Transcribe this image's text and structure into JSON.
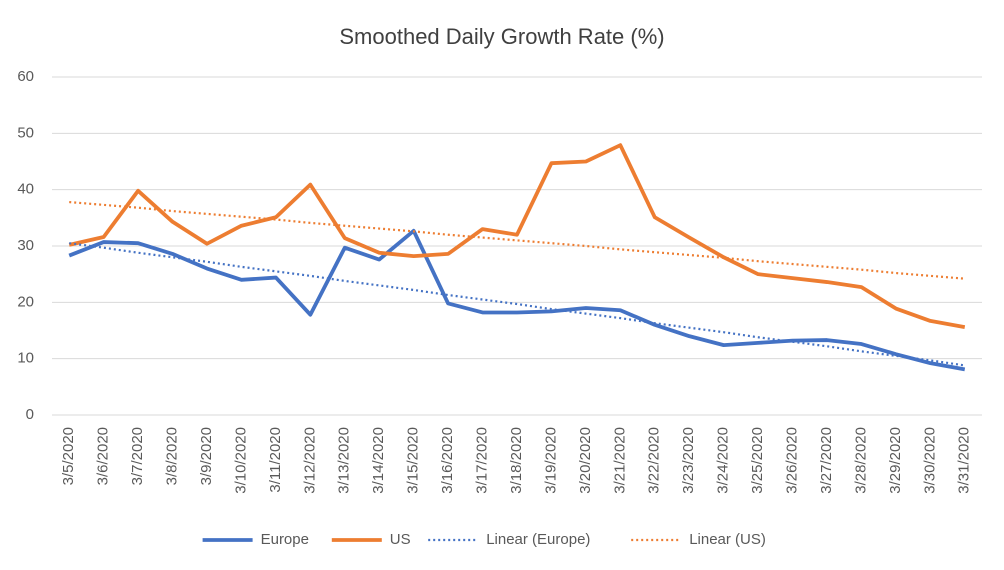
{
  "chart_data": {
    "type": "line",
    "title": "Smoothed Daily Growth Rate (%)",
    "categories": [
      "3/5/2020",
      "3/6/2020",
      "3/7/2020",
      "3/8/2020",
      "3/9/2020",
      "3/10/2020",
      "3/11/2020",
      "3/12/2020",
      "3/13/2020",
      "3/14/2020",
      "3/15/2020",
      "3/16/2020",
      "3/17/2020",
      "3/18/2020",
      "3/19/2020",
      "3/20/2020",
      "3/21/2020",
      "3/22/2020",
      "3/23/2020",
      "3/24/2020",
      "3/25/2020",
      "3/26/2020",
      "3/27/2020",
      "3/28/2020",
      "3/29/2020",
      "3/30/2020",
      "3/31/2020"
    ],
    "series": [
      {
        "name": "Europe",
        "color": "#4472c4",
        "style": "solid",
        "values": [
          28.3,
          30.7,
          30.5,
          28.6,
          26,
          24,
          24.4,
          17.8,
          29.7,
          27.6,
          32.7,
          19.8,
          18.2,
          18.2,
          18.4,
          19,
          18.6,
          16,
          14,
          12.4,
          12.8,
          13.2,
          13.3,
          12.6,
          10.8,
          9.2,
          8.1
        ]
      },
      {
        "name": "US",
        "color": "#ed7d31",
        "style": "solid",
        "values": [
          30.2,
          31.6,
          39.8,
          34.3,
          30.4,
          33.6,
          35.1,
          40.9,
          31.4,
          28.8,
          28.2,
          28.6,
          33,
          32,
          44.7,
          45,
          47.9,
          35.1,
          31.5,
          28,
          25,
          24.3,
          23.6,
          22.7,
          18.9,
          16.7,
          15.6
        ]
      },
      {
        "name": "Linear (Europe)",
        "color": "#4472c4",
        "style": "dotted",
        "values": [
          30.5,
          29.7,
          28.8,
          28.0,
          27.2,
          26.3,
          25.5,
          24.7,
          23.8,
          23.0,
          22.2,
          21.3,
          20.5,
          19.7,
          18.8,
          18.0,
          17.2,
          16.3,
          15.5,
          14.7,
          13.8,
          13.0,
          12.2,
          11.3,
          10.5,
          9.7,
          8.8
        ]
      },
      {
        "name": "Linear (US)",
        "color": "#ed7d31",
        "style": "dotted",
        "values": [
          37.8,
          37.3,
          36.8,
          36.2,
          35.7,
          35.2,
          34.7,
          34.1,
          33.6,
          33.1,
          32.6,
          32.0,
          31.5,
          31.0,
          30.5,
          30.0,
          29.4,
          28.9,
          28.4,
          27.9,
          27.3,
          26.8,
          26.3,
          25.8,
          25.2,
          24.7,
          24.2
        ]
      }
    ],
    "ylim": [
      0,
      60
    ],
    "yticks": [
      0,
      10,
      20,
      30,
      40,
      50,
      60
    ],
    "grid": true,
    "legend": "bottom"
  }
}
